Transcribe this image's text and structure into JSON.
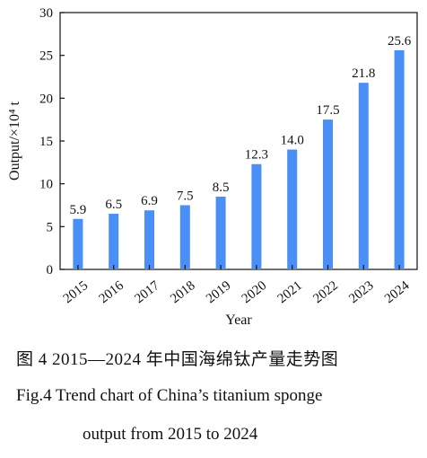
{
  "chart_data": {
    "type": "bar",
    "categories": [
      "2015",
      "2016",
      "2017",
      "2018",
      "2019",
      "2020",
      "2021",
      "2022",
      "2023",
      "2024"
    ],
    "values": [
      5.9,
      6.5,
      6.9,
      7.5,
      8.5,
      12.3,
      14.0,
      17.5,
      21.8,
      25.6
    ],
    "value_labels": [
      "5.9",
      "6.5",
      "6.9",
      "7.5",
      "8.5",
      "12.3",
      "14.0",
      "17.5",
      "21.8",
      "25.6"
    ],
    "xlabel": "Year",
    "ylabel": "Output/×10⁴ t",
    "ylim": [
      0,
      30
    ],
    "yticks": [
      "0",
      "5",
      "10",
      "15",
      "20",
      "25",
      "30"
    ],
    "grid": false,
    "bar_color": "#4a8ff5"
  },
  "caption": {
    "zh": "图 4    2015—2024 年中国海绵钛产量走势图",
    "en_line1": "Fig.4    Trend chart of China’s titanium sponge",
    "en_line2": "output from 2015 to 2024"
  }
}
